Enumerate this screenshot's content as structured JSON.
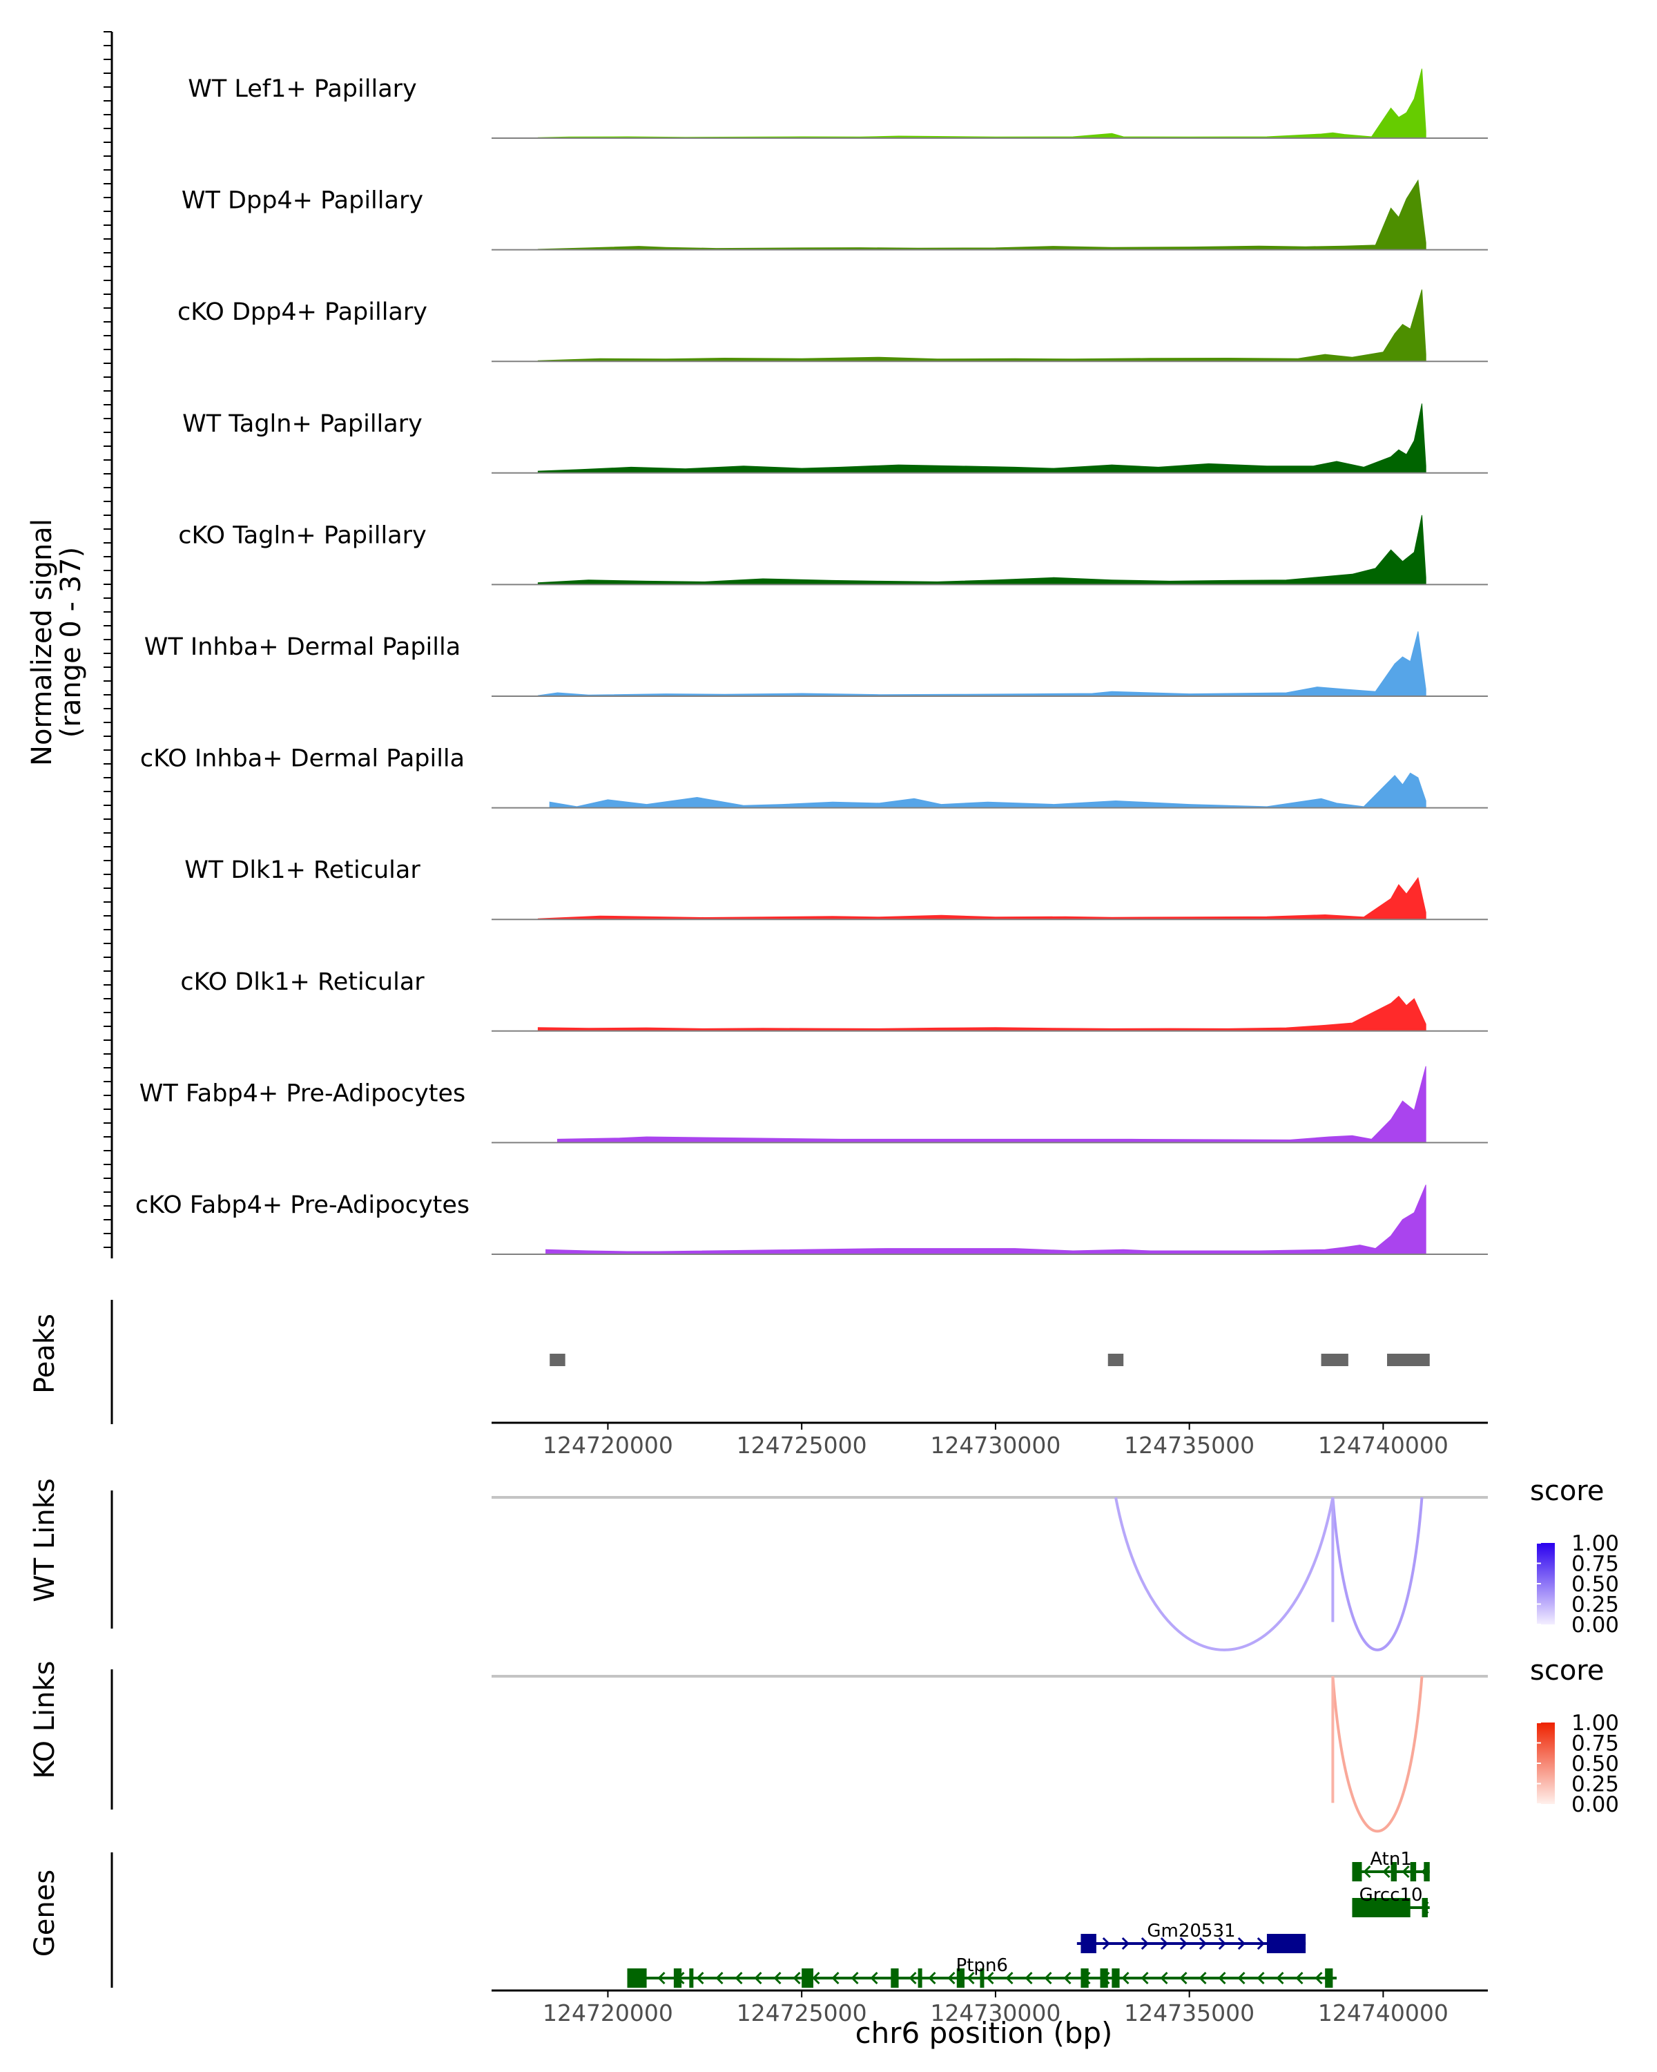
{
  "chart_data": {
    "type": "area",
    "title": "",
    "xlabel": "chr6 position (bp)",
    "xlim": [
      124717000,
      124742700
    ],
    "x_ticks": [
      124720000,
      124725000,
      124730000,
      124735000,
      124740000
    ],
    "x_tick_labels": [
      "124720000",
      "124725000",
      "124730000",
      "124735000",
      "124740000"
    ],
    "coverage": {
      "ylabel": "Normalized signal",
      "ylabel_range": "(range 0 - 37)",
      "ylim": [
        0,
        37
      ],
      "tracks": [
        {
          "name": "WT Lef1+ Papillary",
          "color": "#66cc00",
          "x": [
            124718200,
            124719000,
            124720500,
            124722000,
            124724000,
            124725000,
            124726500,
            124727500,
            124730000,
            124732000,
            124733000,
            124733300,
            124735000,
            124737000,
            124738400,
            124738700,
            124739000,
            124739700,
            124740200,
            124740400,
            124740600,
            124740800,
            124741000,
            124741100
          ],
          "y": [
            0.2,
            0.5,
            0.6,
            0.4,
            0.5,
            0.6,
            0.5,
            0.9,
            0.5,
            0.6,
            2.0,
            0.6,
            0.5,
            0.6,
            1.8,
            2.3,
            1.6,
            0.6,
            13,
            9,
            11,
            17,
            30,
            3
          ]
        },
        {
          "name": "WT Dpp4+ Papillary",
          "color": "#4d8f00",
          "x": [
            124718200,
            124719500,
            124720800,
            124721500,
            124722800,
            124725000,
            124726500,
            124728000,
            124730000,
            124731500,
            124733000,
            124735000,
            124736800,
            124738000,
            124739000,
            124739800,
            124740200,
            124740400,
            124740600,
            124740900,
            124741100
          ],
          "y": [
            0.2,
            0.8,
            1.5,
            1.0,
            0.6,
            0.8,
            0.9,
            0.7,
            0.8,
            1.5,
            1.0,
            1.2,
            1.6,
            1.3,
            1.6,
            2.0,
            18,
            14,
            22,
            30,
            3
          ]
        },
        {
          "name": "cKO Dpp4+ Papillary",
          "color": "#4d8f00",
          "x": [
            124718200,
            124719800,
            124721500,
            124723000,
            124725000,
            124727000,
            124728500,
            124730500,
            124732000,
            124734000,
            124736000,
            124737800,
            124738500,
            124739200,
            124740000,
            124740300,
            124740500,
            124740700,
            124741000,
            124741100
          ],
          "y": [
            0.3,
            1.2,
            1.0,
            1.4,
            1.2,
            1.8,
            1.0,
            1.2,
            1.0,
            1.3,
            1.4,
            1.2,
            3.0,
            1.8,
            4,
            12,
            16,
            14,
            31,
            3
          ]
        },
        {
          "name": "WT Tagln+ Papillary",
          "color": "#006400",
          "x": [
            124718200,
            124719300,
            124720600,
            124722000,
            124723500,
            124725000,
            124726000,
            124727500,
            124729000,
            124730500,
            124731500,
            124733000,
            124734200,
            124735500,
            124737000,
            124738200,
            124738800,
            124739500,
            124740200,
            124740400,
            124740600,
            124740800,
            124741000,
            124741100
          ],
          "y": [
            0.8,
            1.5,
            2.5,
            1.8,
            3.0,
            2.0,
            2.5,
            3.5,
            3.0,
            2.5,
            2.0,
            3.5,
            2.5,
            4.0,
            3.0,
            3.0,
            5.0,
            2.5,
            7,
            10,
            8,
            14,
            30,
            3
          ]
        },
        {
          "name": "cKO Tagln+ Papillary",
          "color": "#006400",
          "x": [
            124718200,
            124719500,
            124721000,
            124722500,
            124724000,
            124725800,
            124727000,
            124728500,
            124730000,
            124731500,
            124733000,
            124734500,
            124736000,
            124737500,
            124738500,
            124739200,
            124739800,
            124740200,
            124740500,
            124740800,
            124741000,
            124741100
          ],
          "y": [
            0.8,
            2.0,
            1.5,
            1.2,
            2.5,
            1.8,
            1.5,
            1.2,
            2.0,
            3.0,
            2.0,
            1.5,
            1.8,
            2.0,
            3.5,
            4.5,
            7,
            15,
            10,
            14,
            30,
            3
          ]
        },
        {
          "name": "WT Inhba+ Dermal Papilla",
          "color": "#56a5e8",
          "x": [
            124718200,
            124718700,
            124719500,
            124721500,
            124723000,
            124725000,
            124727000,
            124729000,
            124731000,
            124732500,
            124733000,
            124735000,
            124737500,
            124738300,
            124739000,
            124739800,
            124740300,
            124740500,
            124740700,
            124740900,
            124741100
          ],
          "y": [
            0.3,
            1.5,
            0.5,
            1.0,
            0.8,
            1.2,
            0.7,
            0.8,
            1.0,
            1.2,
            2.0,
            1.0,
            1.5,
            4,
            3,
            2,
            14,
            17,
            15,
            28,
            3
          ]
        },
        {
          "name": "cKO Inhba+ Dermal Papilla",
          "color": "#56a5e8",
          "x": [
            124718500,
            124719200,
            124720000,
            124721000,
            124722300,
            124723500,
            124724500,
            124725800,
            124727000,
            124727900,
            124728600,
            124729800,
            124731500,
            124733100,
            124735000,
            124737000,
            124738400,
            124738800,
            124739500,
            124740300,
            124740500,
            124740700,
            124740900,
            124741100
          ],
          "y": [
            2.5,
            0.5,
            3.5,
            1.5,
            4.5,
            1.0,
            1.5,
            2.5,
            2.0,
            4.0,
            1.5,
            2.5,
            1.5,
            3.0,
            1.5,
            0.5,
            4,
            2,
            0.5,
            14,
            10,
            15,
            13,
            3
          ]
        },
        {
          "name": "WT Dlk1+ Reticular",
          "color": "#ff2a2a",
          "x": [
            124718200,
            124719800,
            124721000,
            124722500,
            124724000,
            124725800,
            124727000,
            124728600,
            124730000,
            124731800,
            124733000,
            124735000,
            124737000,
            124738500,
            124739500,
            124740200,
            124740400,
            124740600,
            124740900,
            124741100
          ],
          "y": [
            0.3,
            1.5,
            1.2,
            0.8,
            1.0,
            1.3,
            1.0,
            1.8,
            1.0,
            1.2,
            0.9,
            1.0,
            1.2,
            2.0,
            1.0,
            9,
            15,
            11,
            18,
            3
          ]
        },
        {
          "name": "cKO Dlk1+ Reticular",
          "color": "#ff2a2a",
          "x": [
            124718200,
            124719500,
            124721000,
            124722500,
            124724000,
            124725500,
            124727000,
            124728500,
            124730000,
            124731500,
            124733000,
            124734500,
            124736000,
            124737500,
            124738500,
            124739200,
            124740200,
            124740400,
            124740600,
            124740800,
            124741100
          ],
          "y": [
            1.5,
            1.2,
            1.4,
            1.0,
            1.2,
            1.1,
            1.0,
            1.3,
            1.5,
            1.2,
            1.0,
            1.1,
            1.0,
            1.4,
            2.5,
            3.5,
            12,
            15,
            11,
            14,
            3
          ]
        },
        {
          "name": "WT Fabp4+ Pre-Adipocytes",
          "color": "#aa44ee",
          "x": [
            124718700,
            124720300,
            124721000,
            124726000,
            124733500,
            124737600,
            124738600,
            124739200,
            124739700,
            124740200,
            124740500,
            124740800,
            124741100
          ],
          "y": [
            1.5,
            2.0,
            2.5,
            1.5,
            1.5,
            1.2,
            2.5,
            3.0,
            1.5,
            10,
            18,
            14,
            33
          ]
        },
        {
          "name": "cKO Fabp4+ Pre-Adipocytes",
          "color": "#aa44ee",
          "x": [
            124718400,
            124719500,
            124720500,
            124721300,
            124727200,
            124730500,
            124732000,
            124733300,
            124734000,
            124736800,
            124738500,
            124739000,
            124739400,
            124739800,
            124740200,
            124740500,
            124740800,
            124741100
          ],
          "y": [
            2.0,
            1.5,
            1.2,
            1.2,
            2.5,
            2.5,
            1.5,
            2.0,
            1.5,
            1.5,
            2.0,
            3.0,
            4.0,
            2.5,
            8,
            15,
            18,
            30
          ]
        }
      ]
    },
    "peaks": {
      "label": "Peaks",
      "regions": [
        [
          124718500,
          124718900
        ],
        [
          124732900,
          124733300
        ],
        [
          124738400,
          124739100
        ],
        [
          124740100,
          124741200
        ]
      ]
    },
    "links": [
      {
        "label": "WT Links",
        "legend_title": "score",
        "color_high": "#2a00ee",
        "color_low": "#f3eeff",
        "legend_ticks": [
          "1.00",
          "0.75",
          "0.50",
          "0.25",
          "0.00"
        ],
        "arcs": [
          {
            "start": 124733100,
            "end": 124738700,
            "score": 0.3
          },
          {
            "start": 124738700,
            "end": 124741000,
            "score": 0.35
          },
          {
            "start": 124738700,
            "end": 124738700,
            "score": 0.3
          }
        ]
      },
      {
        "label": "KO Links",
        "legend_title": "score",
        "color_high": "#ee2200",
        "color_low": "#fff0ec",
        "legend_ticks": [
          "1.00",
          "0.75",
          "0.50",
          "0.25",
          "0.00"
        ],
        "arcs": [
          {
            "start": 124738700,
            "end": 124741000,
            "score": 0.35
          },
          {
            "start": 124738700,
            "end": 124738700,
            "score": 0.3
          }
        ]
      }
    ],
    "genes": {
      "label": "Genes",
      "items": [
        {
          "name": "Atn1",
          "start": 124739200,
          "end": 124741200,
          "strand": "-",
          "color": "#006400",
          "exons": [
            [
              124739200,
              124739450
            ],
            [
              124740200,
              124740350
            ],
            [
              124740700,
              124740850
            ],
            [
              124741050,
              124741200
            ]
          ]
        },
        {
          "name": "Grcc10",
          "start": 124739200,
          "end": 124741200,
          "strand": "-",
          "color": "#006400",
          "exons": [
            [
              124739200,
              124740700
            ],
            [
              124741000,
              124741150
            ]
          ]
        },
        {
          "name": "Gm20531",
          "start": 124732100,
          "end": 124738000,
          "strand": "+",
          "color": "#00008b",
          "exons": [
            [
              124732200,
              124732600
            ],
            [
              124737000,
              124738000
            ]
          ]
        },
        {
          "name": "Ptpn6",
          "start": 124720500,
          "end": 124738800,
          "strand": "-",
          "color": "#006400",
          "exons": [
            [
              124720500,
              124721000
            ],
            [
              124721700,
              124721900
            ],
            [
              124722100,
              124722200
            ],
            [
              124725000,
              124725300
            ],
            [
              124727300,
              124727500
            ],
            [
              124728000,
              124728100
            ],
            [
              124729000,
              124729200
            ],
            [
              124729600,
              124729700
            ],
            [
              124732200,
              124732400
            ],
            [
              124732700,
              124732900
            ],
            [
              124733000,
              124733200
            ],
            [
              124738500,
              124738700
            ]
          ]
        }
      ]
    }
  }
}
